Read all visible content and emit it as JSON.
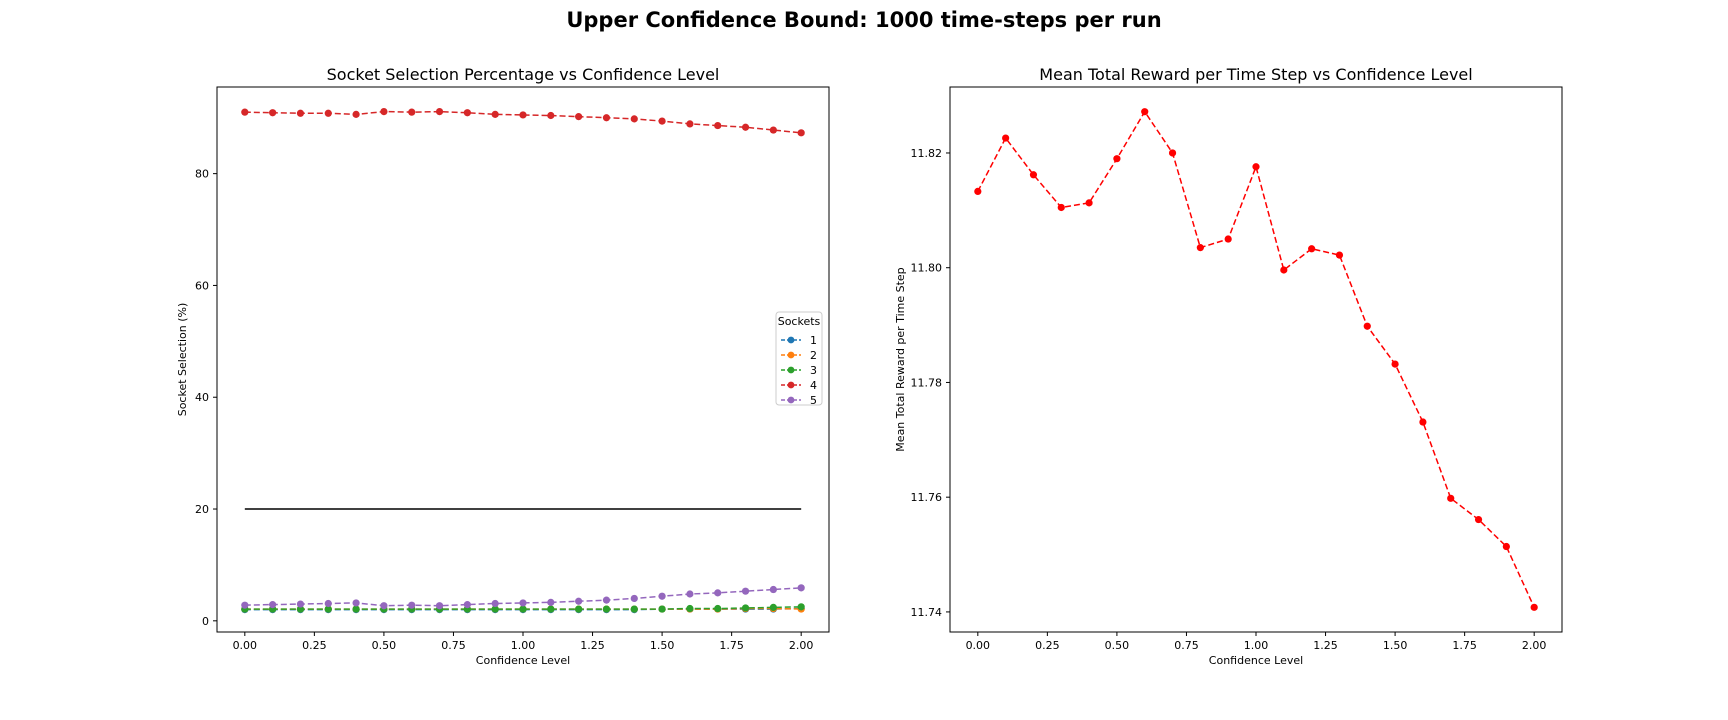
{
  "figure_title": "Upper Confidence Bound: 1000 time-steps per run",
  "chart_data": [
    {
      "type": "line",
      "title": "Socket Selection Percentage vs Confidence Level",
      "xlabel": "Confidence Level",
      "ylabel": "Socket Selection (%)",
      "xlim": [
        -0.1,
        2.1
      ],
      "ylim": [
        -2,
        95.5
      ],
      "xticks": [
        "0.00",
        "0.25",
        "0.50",
        "0.75",
        "1.00",
        "1.25",
        "1.50",
        "1.75",
        "2.00"
      ],
      "yticks": [
        "0",
        "20",
        "40",
        "60",
        "80"
      ],
      "grid": false,
      "legend": {
        "title": "Sockets",
        "placement": "right"
      },
      "x": [
        0.0,
        0.1,
        0.2,
        0.3,
        0.4,
        0.5,
        0.6,
        0.7,
        0.8,
        0.9,
        1.0,
        1.1,
        1.2,
        1.3,
        1.4,
        1.5,
        1.6,
        1.7,
        1.8,
        1.9,
        2.0
      ],
      "series": [
        {
          "name": "1",
          "color": "#1f77b4",
          "values": [
            2.0,
            2.0,
            2.0,
            2.0,
            2.0,
            2.0,
            2.0,
            2.0,
            2.0,
            2.0,
            2.0,
            2.0,
            2.0,
            2.0,
            2.0,
            2.1,
            2.1,
            2.1,
            2.1,
            2.1,
            2.2
          ]
        },
        {
          "name": "2",
          "color": "#ff7f0e",
          "values": [
            2.1,
            2.1,
            2.1,
            2.1,
            2.1,
            2.1,
            2.1,
            2.1,
            2.1,
            2.1,
            2.1,
            2.1,
            2.1,
            2.1,
            2.1,
            2.1,
            2.1,
            2.1,
            2.2,
            2.2,
            2.1
          ]
        },
        {
          "name": "3",
          "color": "#2ca02c",
          "values": [
            2.1,
            2.1,
            2.1,
            2.1,
            2.1,
            2.1,
            2.1,
            2.1,
            2.1,
            2.1,
            2.1,
            2.1,
            2.1,
            2.1,
            2.1,
            2.1,
            2.2,
            2.2,
            2.3,
            2.4,
            2.5
          ]
        },
        {
          "name": "4",
          "color": "#d62728",
          "values": [
            91.0,
            90.9,
            90.8,
            90.8,
            90.6,
            91.1,
            91.0,
            91.1,
            90.9,
            90.6,
            90.5,
            90.4,
            90.2,
            90.0,
            89.8,
            89.4,
            88.9,
            88.6,
            88.3,
            87.8,
            87.3
          ]
        },
        {
          "name": "5",
          "color": "#9467bd",
          "values": [
            2.8,
            2.9,
            3.0,
            3.1,
            3.2,
            2.7,
            2.8,
            2.7,
            2.9,
            3.1,
            3.2,
            3.3,
            3.5,
            3.7,
            4.0,
            4.4,
            4.8,
            5.0,
            5.3,
            5.6,
            5.9
          ]
        }
      ],
      "reference_line": {
        "y": 20,
        "x_from": 0.0,
        "x_to": 2.0,
        "color": "#000000"
      }
    },
    {
      "type": "line",
      "title": "Mean Total Reward per Time Step vs Confidence Level",
      "xlabel": "Confidence Level",
      "ylabel": "Mean Total Reward per Time Step",
      "xlim": [
        -0.1,
        2.1
      ],
      "ylim": [
        11.7365,
        11.8315
      ],
      "xticks": [
        "0.00",
        "0.25",
        "0.50",
        "0.75",
        "1.00",
        "1.25",
        "1.50",
        "1.75",
        "2.00"
      ],
      "yticks": [
        "11.74",
        "11.76",
        "11.78",
        "11.80",
        "11.82"
      ],
      "grid": false,
      "x": [
        0.0,
        0.1,
        0.2,
        0.3,
        0.4,
        0.5,
        0.6,
        0.7,
        0.8,
        0.9,
        1.0,
        1.1,
        1.2,
        1.3,
        1.4,
        1.5,
        1.6,
        1.7,
        1.8,
        1.9,
        2.0
      ],
      "series": [
        {
          "color": "#ff0000",
          "values": [
            11.8133,
            11.8226,
            11.8162,
            11.8105,
            11.8113,
            11.819,
            11.8272,
            11.82,
            11.8035,
            11.805,
            11.8176,
            11.7996,
            11.8033,
            11.8022,
            11.7898,
            11.7832,
            11.7731,
            11.7598,
            11.7561,
            11.7514,
            11.7408
          ]
        }
      ]
    }
  ]
}
